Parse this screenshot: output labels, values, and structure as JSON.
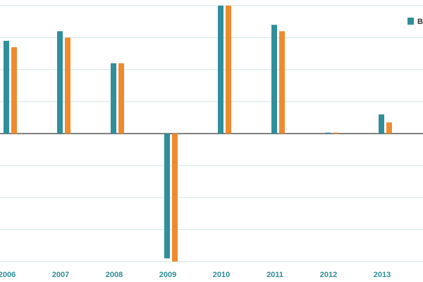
{
  "chart_data": {
    "type": "bar",
    "categories": [
      "2006",
      "2007",
      "2008",
      "2009",
      "2010",
      "2011",
      "2012",
      "2013"
    ],
    "series": [
      {
        "name": "B",
        "color": "#2f8f9c",
        "values": [
          2.9,
          3.2,
          2.2,
          -3.9,
          4.0,
          3.4,
          0.03,
          0.6
        ]
      },
      {
        "color": "#ef8b2e",
        "values": [
          2.7,
          3.0,
          2.2,
          -4.0,
          4.0,
          3.2,
          0.03,
          0.35
        ]
      }
    ],
    "ylim": [
      -4,
      4
    ],
    "yticks": [
      -4,
      -3,
      -2,
      -1,
      0,
      1,
      2,
      3,
      4
    ],
    "grid": true
  }
}
